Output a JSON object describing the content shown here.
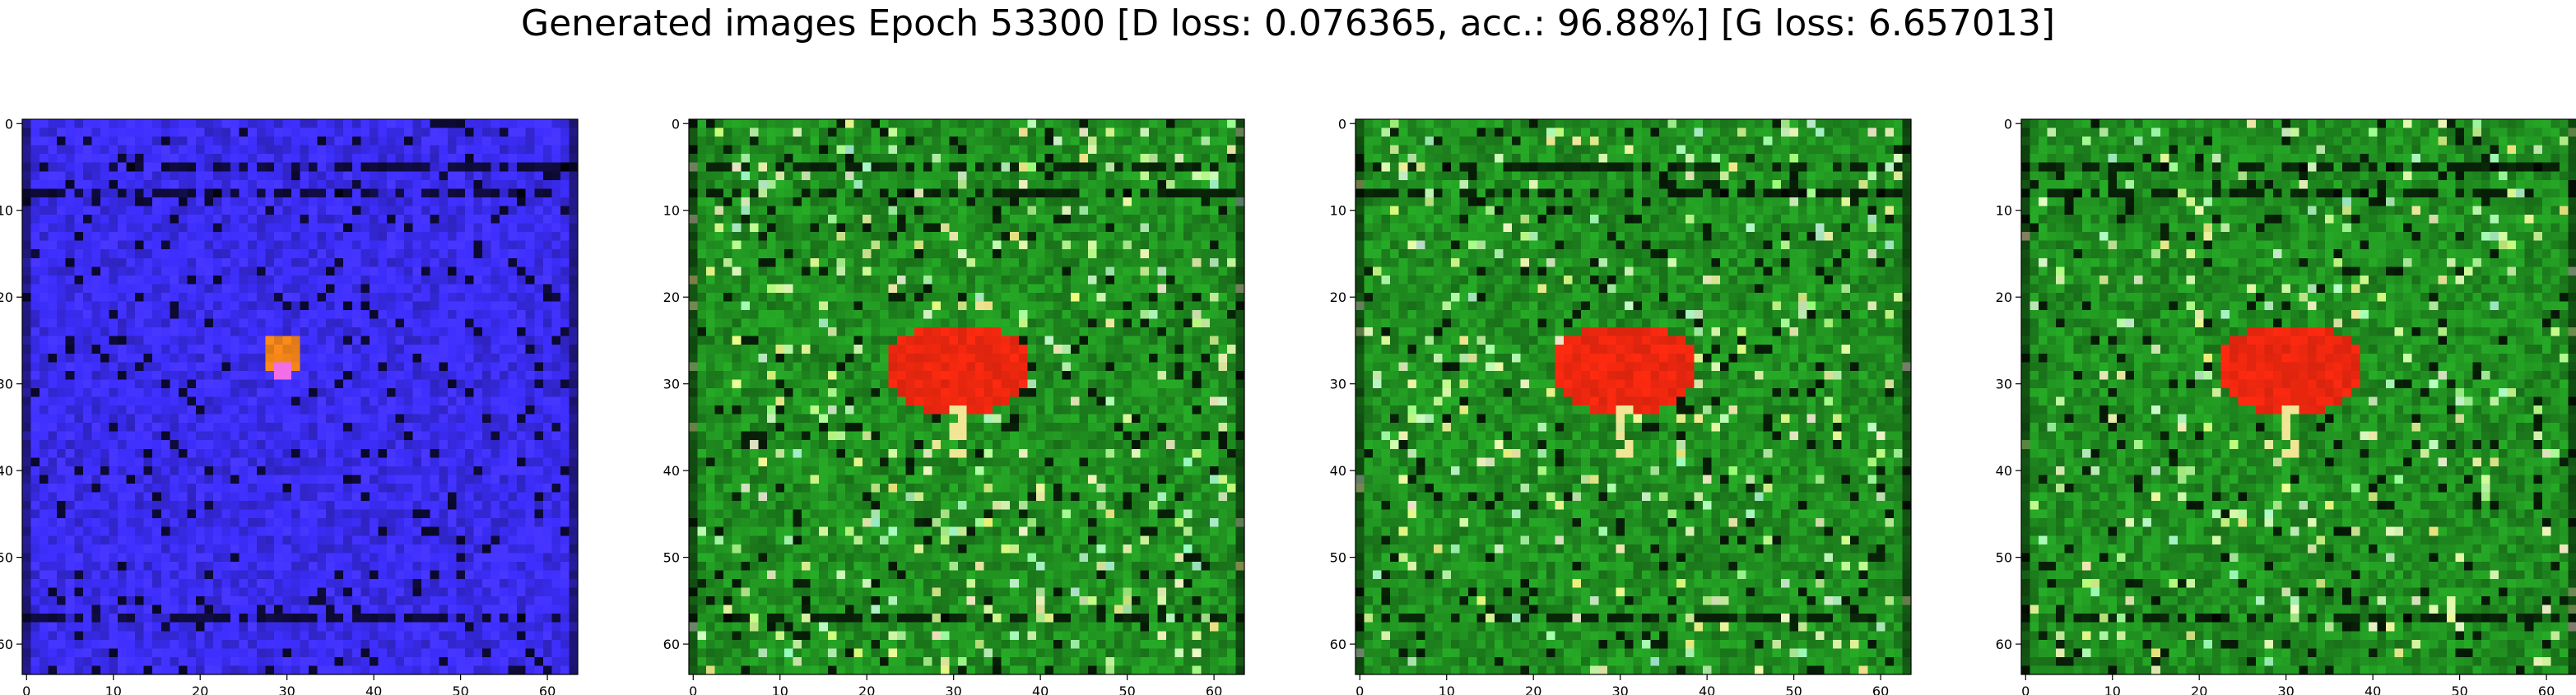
{
  "figure": {
    "title": "Generated images Epoch 53300 [D loss: 0.076365, acc.: 96.88%] [G loss: 6.657013]"
  },
  "chart_data": [
    {
      "type": "heatmap",
      "image": "generated-sample-1",
      "dominant_color": "#3a2cf0",
      "blob_color": "#ff8c1a",
      "xlim": [
        -0.5,
        63.5
      ],
      "ylim": [
        63.5,
        -0.5
      ],
      "xticks": [
        0,
        10,
        20,
        30,
        40,
        50,
        60
      ],
      "yticks": [
        0,
        10,
        20,
        30,
        40,
        50,
        60
      ],
      "xtick_labels": [
        "0",
        "10",
        "20",
        "30",
        "40",
        "50",
        "60"
      ],
      "ytick_labels": [
        "0",
        "10",
        "20",
        "30",
        "40",
        "50",
        "60"
      ]
    },
    {
      "type": "heatmap",
      "image": "generated-sample-2",
      "dominant_color": "#1f8a1f",
      "blob_color": "#ff2a10",
      "xlim": [
        -0.5,
        63.5
      ],
      "ylim": [
        63.5,
        -0.5
      ],
      "xticks": [
        0,
        10,
        20,
        30,
        40,
        50,
        60
      ],
      "yticks": [
        0,
        10,
        20,
        30,
        40,
        50,
        60
      ],
      "xtick_labels": [
        "0",
        "10",
        "20",
        "30",
        "40",
        "50",
        "60"
      ],
      "ytick_labels": [
        "0",
        "10",
        "20",
        "30",
        "40",
        "50",
        "60"
      ]
    },
    {
      "type": "heatmap",
      "image": "generated-sample-3",
      "dominant_color": "#1f8a1f",
      "blob_color": "#ff2a10",
      "xlim": [
        -0.5,
        63.5
      ],
      "ylim": [
        63.5,
        -0.5
      ],
      "xticks": [
        0,
        10,
        20,
        30,
        40,
        50,
        60
      ],
      "yticks": [
        0,
        10,
        20,
        30,
        40,
        50,
        60
      ],
      "xtick_labels": [
        "0",
        "10",
        "20",
        "30",
        "40",
        "50",
        "60"
      ],
      "ytick_labels": [
        "0",
        "10",
        "20",
        "30",
        "40",
        "50",
        "60"
      ]
    },
    {
      "type": "heatmap",
      "image": "generated-sample-4",
      "dominant_color": "#1f8a1f",
      "blob_color": "#ff2a10",
      "xlim": [
        -0.5,
        63.5
      ],
      "ylim": [
        63.5,
        -0.5
      ],
      "xticks": [
        0,
        10,
        20,
        30,
        40,
        50,
        60
      ],
      "yticks": [
        0,
        10,
        20,
        30,
        40,
        50,
        60
      ],
      "xtick_labels": [
        "0",
        "10",
        "20",
        "30",
        "40",
        "50",
        "60"
      ],
      "ytick_labels": [
        "0",
        "10",
        "20",
        "30",
        "40",
        "50",
        "60"
      ]
    }
  ]
}
